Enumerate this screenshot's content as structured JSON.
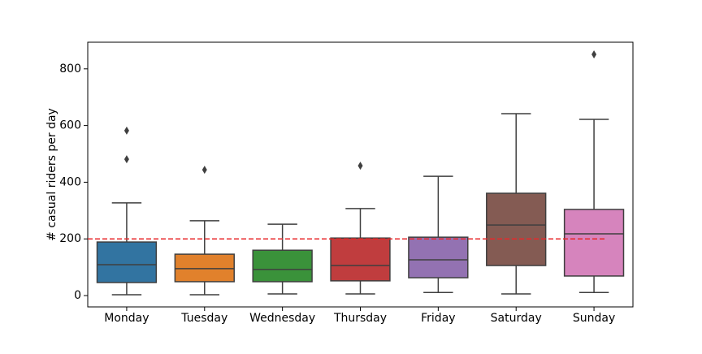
{
  "chart_data": {
    "type": "box",
    "ylabel": "# casual riders per day",
    "categories": [
      "Monday",
      "Tuesday",
      "Wednesday",
      "Thursday",
      "Friday",
      "Saturday",
      "Sunday"
    ],
    "colors": [
      "#3274a1",
      "#e1812c",
      "#3a923a",
      "#c03d3e",
      "#9372b2",
      "#845b53",
      "#d684bd"
    ],
    "boxes": [
      {
        "whislo": 3,
        "q1": 46,
        "median": 109,
        "q3": 189,
        "whishi": 327,
        "fliers": [
          481,
          582
        ]
      },
      {
        "whislo": 3,
        "q1": 49,
        "median": 95,
        "q3": 146,
        "whishi": 264,
        "fliers": [
          444
        ]
      },
      {
        "whislo": 6,
        "q1": 49,
        "median": 92,
        "q3": 160,
        "whishi": 252,
        "fliers": []
      },
      {
        "whislo": 6,
        "q1": 52,
        "median": 106,
        "q3": 203,
        "whishi": 307,
        "fliers": [
          458
        ]
      },
      {
        "whislo": 11,
        "q1": 63,
        "median": 126,
        "q3": 206,
        "whishi": 421,
        "fliers": []
      },
      {
        "whislo": 6,
        "q1": 106,
        "median": 249,
        "q3": 361,
        "whishi": 642,
        "fliers": []
      },
      {
        "whislo": 11,
        "q1": 69,
        "median": 218,
        "q3": 304,
        "whishi": 622,
        "fliers": [
          851
        ]
      }
    ],
    "reference_line": {
      "value": 200,
      "color": "#e8282a",
      "style": "dashed"
    },
    "ylim": [
      -40,
      894
    ],
    "yticks": [
      0,
      200,
      400,
      600,
      800
    ]
  }
}
